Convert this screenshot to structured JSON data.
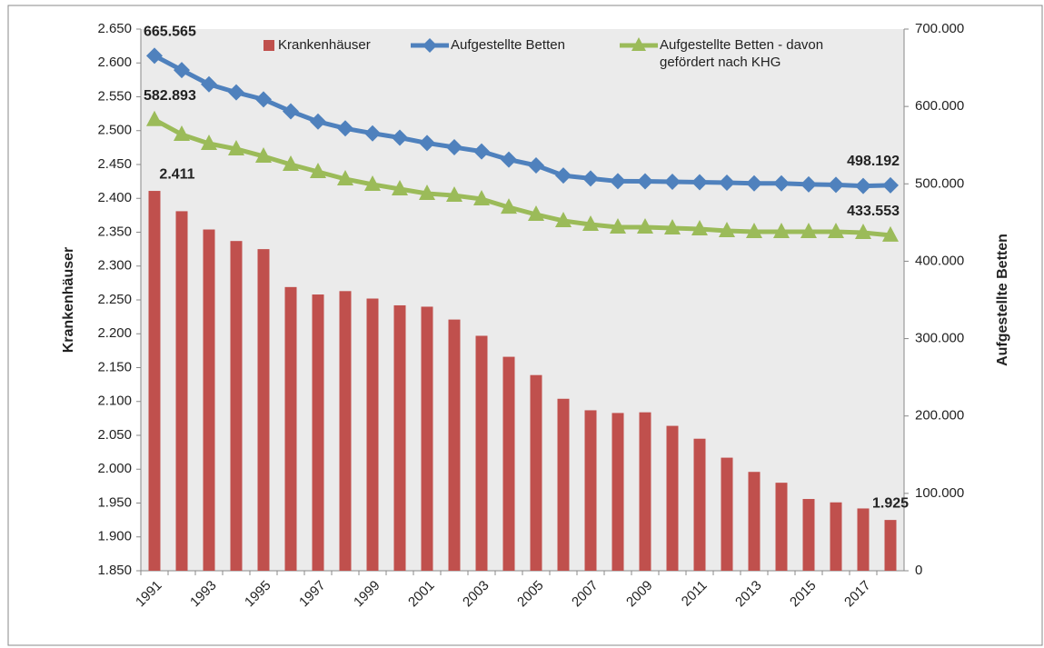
{
  "chart_data": {
    "type": "combo",
    "categories": [
      "1991",
      null,
      "1993",
      null,
      "1995",
      null,
      "1997",
      null,
      "1999",
      null,
      "2001",
      null,
      "2003",
      null,
      "2005",
      null,
      "2007",
      null,
      "2009",
      null,
      "2011",
      null,
      "2013",
      null,
      "2015",
      null,
      "2017",
      null
    ],
    "y_label": "Krankenhäuser",
    "y2_label": "Aufgestellte Betten",
    "ylim": [
      1850,
      2650
    ],
    "yticks": [
      {
        "value": 1850,
        "label": "1.850"
      },
      {
        "value": 1900,
        "label": "1.900"
      },
      {
        "value": 1950,
        "label": "1.950"
      },
      {
        "value": 2000,
        "label": "2.000"
      },
      {
        "value": 2050,
        "label": "2.050"
      },
      {
        "value": 2100,
        "label": "2.100"
      },
      {
        "value": 2150,
        "label": "2.150"
      },
      {
        "value": 2200,
        "label": "2.200"
      },
      {
        "value": 2250,
        "label": "2.250"
      },
      {
        "value": 2300,
        "label": "2.300"
      },
      {
        "value": 2350,
        "label": "2.350"
      },
      {
        "value": 2400,
        "label": "2.400"
      },
      {
        "value": 2450,
        "label": "2.450"
      },
      {
        "value": 2500,
        "label": "2.500"
      },
      {
        "value": 2550,
        "label": "2.550"
      },
      {
        "value": 2600,
        "label": "2.600"
      },
      {
        "value": 2650,
        "label": "2.650"
      }
    ],
    "y2lim": [
      0,
      700000
    ],
    "y2ticks": [
      0,
      {
        "value": 100000,
        "label": "100.000"
      },
      {
        "value": 200000,
        "label": "200.000"
      },
      {
        "value": 300000,
        "label": "300.000"
      },
      {
        "value": 400000,
        "label": "400.000"
      },
      {
        "value": 500000,
        "label": "500.000"
      },
      {
        "value": 600000,
        "label": "600.000"
      },
      {
        "value": 700000,
        "label": "700.000"
      }
    ],
    "grid": false,
    "legend": "top",
    "series": [
      {
        "name": "Krankenhäuser",
        "type": "bar",
        "color": "#c0504d",
        "values": [
          2411,
          2381,
          2354,
          2337,
          2325,
          2269,
          2258,
          2263,
          2252,
          2242,
          2240,
          2221,
          2197,
          2166,
          2139,
          2104,
          2087,
          2083,
          2084,
          2064,
          2045,
          2017,
          1996,
          1980,
          1956,
          1951,
          1942,
          1925
        ],
        "value_labels": [
          "2.411",
          null,
          null,
          null,
          null,
          null,
          null,
          null,
          null,
          null,
          null,
          null,
          null,
          null,
          null,
          null,
          null,
          null,
          null,
          null,
          null,
          null,
          null,
          null,
          null,
          null,
          null,
          "1.925"
        ]
      },
      {
        "name": "Aufgestellte Betten",
        "type": "line",
        "axis": "y2",
        "marker": "diamond",
        "color": "#4f81bd",
        "values": [
          665565,
          646995,
          628658,
          618176,
          609123,
          593743,
          580425,
          571629,
          565268,
          559651,
          552680,
          547284,
          541901,
          531333,
          523824,
          510767,
          506954,
          503360,
          503341,
          502749,
          502029,
          501475,
          500671,
          500680,
          499351,
          498718,
          497182,
          498192
        ],
        "value_labels": [
          "665.565",
          null,
          null,
          null,
          null,
          null,
          null,
          null,
          null,
          null,
          null,
          null,
          null,
          null,
          null,
          null,
          null,
          null,
          null,
          null,
          null,
          null,
          null,
          null,
          null,
          null,
          null,
          "498.192"
        ]
      },
      {
        "name": "Aufgestellte Betten - davon gefördert nach KHG",
        "type": "line",
        "axis": "y2",
        "marker": "triangle",
        "color": "#9bbb59",
        "values": [
          582893,
          563800,
          552000,
          545000,
          535600,
          525000,
          515600,
          506200,
          499200,
          493300,
          487400,
          485000,
          480400,
          469700,
          460400,
          452200,
          447500,
          444000,
          444000,
          442800,
          441600,
          439300,
          438100,
          438100,
          438100,
          438100,
          436900,
          433553
        ],
        "value_labels": [
          "582.893",
          null,
          null,
          null,
          null,
          null,
          null,
          null,
          null,
          null,
          null,
          null,
          null,
          null,
          null,
          null,
          null,
          null,
          null,
          null,
          null,
          null,
          null,
          null,
          null,
          null,
          null,
          "433.553"
        ]
      }
    ]
  }
}
